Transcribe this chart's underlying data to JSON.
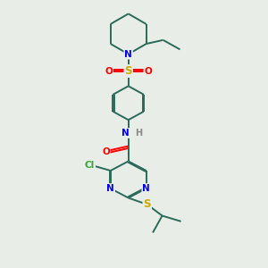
{
  "bg_color": "#e8ede8",
  "atom_colors": {
    "N": "#0000ee",
    "O": "#ff0000",
    "S": "#ccaa00",
    "Cl": "#33aa33",
    "C": "#000000",
    "H": "#888888"
  },
  "bond_color": "#2a6a5a",
  "lw": 1.4
}
